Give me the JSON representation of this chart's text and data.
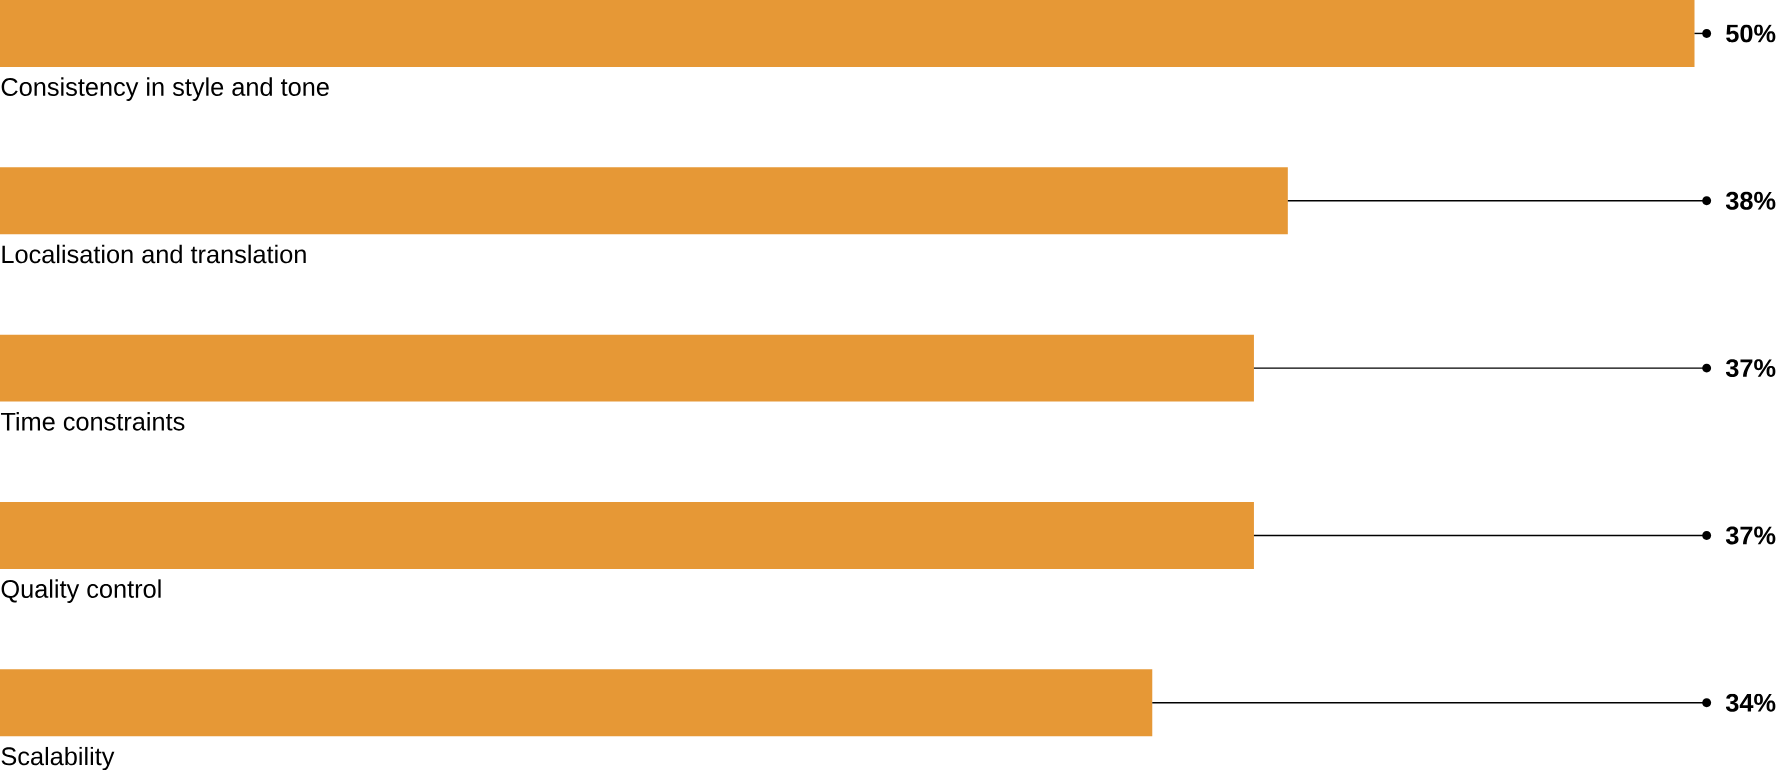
{
  "chart_data": {
    "type": "bar",
    "orientation": "horizontal",
    "categories": [
      "Consistency in style and tone",
      "Localisation and translation",
      "Time constraints",
      "Quality control",
      "Scalability"
    ],
    "values": [
      50,
      38,
      37,
      37,
      34
    ],
    "value_labels": [
      "50%",
      "38%",
      "37%",
      "37%",
      "34%"
    ],
    "color": "#e69836"
  }
}
